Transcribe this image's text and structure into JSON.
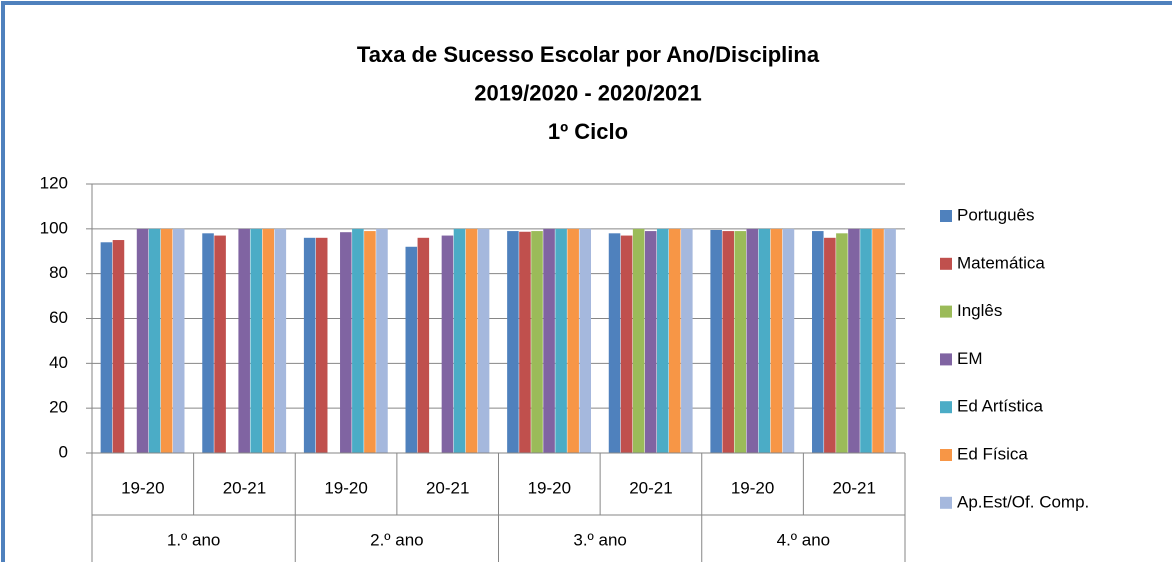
{
  "chart_data": {
    "type": "bar",
    "title": [
      "Taxa de Sucesso Escolar por Ano/Disciplina",
      "2019/2020 - 2020/2021",
      "1º Ciclo"
    ],
    "categories": [
      "19-20",
      "20-21",
      "19-20",
      "20-21",
      "19-20",
      "20-21",
      "19-20",
      "20-21"
    ],
    "category_groups": [
      "1.º ano",
      "2.º ano",
      "3.º ano",
      "4.º ano"
    ],
    "series": [
      {
        "name": "Português",
        "color": "#4f81bd",
        "values": [
          94,
          98,
          96,
          92,
          99,
          98,
          99.5,
          99
        ]
      },
      {
        "name": "Matemática",
        "color": "#c0504d",
        "values": [
          95,
          97,
          96,
          96,
          98.7,
          97,
          99,
          96
        ]
      },
      {
        "name": "Inglês",
        "color": "#9bbb59",
        "values": [
          null,
          null,
          null,
          null,
          99,
          100,
          99,
          98
        ]
      },
      {
        "name": "EM",
        "color": "#8064a2",
        "values": [
          100,
          100,
          98.5,
          97,
          100,
          99,
          100,
          100
        ]
      },
      {
        "name": "Ed Artística",
        "color": "#4bacc6",
        "values": [
          100,
          100,
          100,
          100,
          100,
          100,
          100,
          100
        ]
      },
      {
        "name": "Ed Física",
        "color": "#f79646",
        "values": [
          100,
          100,
          99,
          100,
          100,
          100,
          100,
          100
        ]
      },
      {
        "name": "Ap.Est/Of. Comp.",
        "color": "#a5b8dd",
        "values": [
          100,
          100,
          100,
          100,
          100,
          100,
          100,
          100
        ]
      }
    ],
    "ylim": [
      0,
      120
    ],
    "yticks": [
      0,
      20,
      40,
      60,
      80,
      100,
      120
    ],
    "grid": true,
    "legend": "right"
  }
}
